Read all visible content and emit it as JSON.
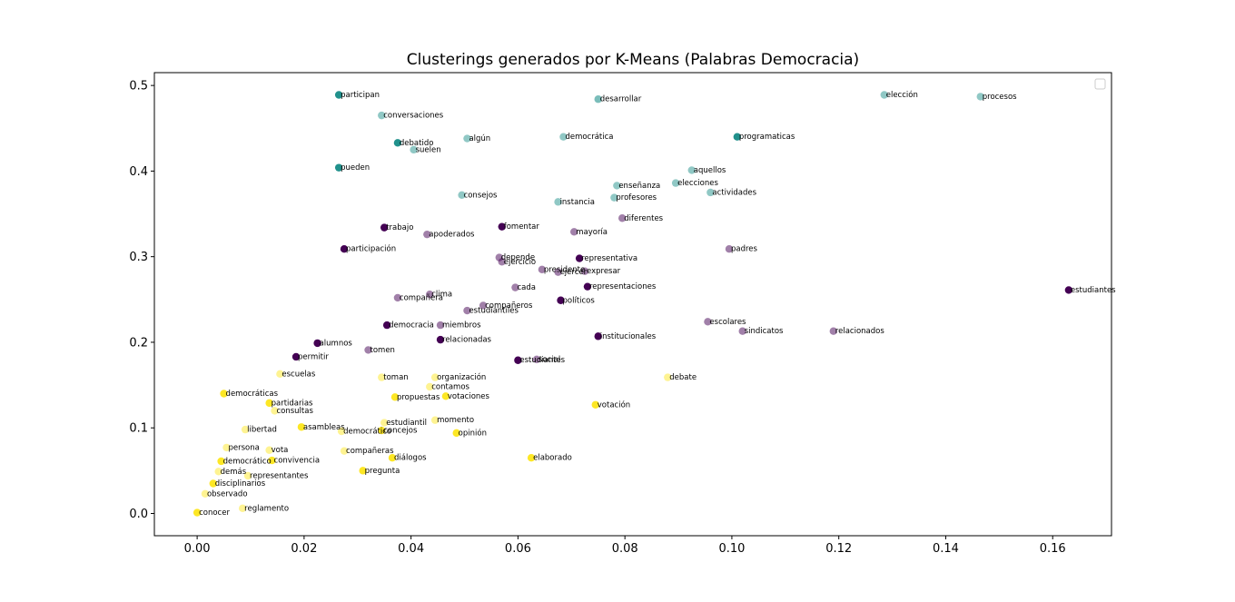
{
  "chart_data": {
    "type": "scatter",
    "title": "Clusterings generados por K-Means (Palabras Democracia)",
    "xlabel": "",
    "ylabel": "",
    "xlim": [
      -0.008,
      0.171
    ],
    "ylim": [
      -0.026,
      0.515
    ],
    "xticks": [
      0.0,
      0.02,
      0.04,
      0.06,
      0.08,
      0.1,
      0.12,
      0.14,
      0.16
    ],
    "xtick_labels": [
      "0.00",
      "0.02",
      "0.04",
      "0.06",
      "0.08",
      "0.10",
      "0.12",
      "0.14",
      "0.16"
    ],
    "yticks": [
      0.0,
      0.1,
      0.2,
      0.3,
      0.4,
      0.5
    ],
    "ytick_labels": [
      "0.0",
      "0.1",
      "0.2",
      "0.3",
      "0.4",
      "0.5"
    ],
    "grid": false,
    "legend": "top-right (empty)",
    "colors": {
      "teal": "#21918c",
      "purple": "#440154",
      "yellow": "#fde725"
    },
    "series": [
      {
        "color": "teal",
        "points": [
          {
            "x": 0.0265,
            "y": 0.489,
            "label": "participan",
            "alpha": 1.0
          },
          {
            "x": 0.075,
            "y": 0.484,
            "label": "desarrollar",
            "alpha": 0.6
          },
          {
            "x": 0.1285,
            "y": 0.489,
            "label": "elección",
            "alpha": 0.5
          },
          {
            "x": 0.1465,
            "y": 0.487,
            "label": "procesos",
            "alpha": 0.5
          },
          {
            "x": 0.0345,
            "y": 0.465,
            "label": "conversaciones",
            "alpha": 0.5
          },
          {
            "x": 0.0375,
            "y": 0.433,
            "label": "debatido",
            "alpha": 1.0
          },
          {
            "x": 0.0405,
            "y": 0.425,
            "label": "suelen",
            "alpha": 0.5
          },
          {
            "x": 0.0505,
            "y": 0.438,
            "label": "algún",
            "alpha": 0.5
          },
          {
            "x": 0.0685,
            "y": 0.44,
            "label": "democrática",
            "alpha": 0.5
          },
          {
            "x": 0.101,
            "y": 0.44,
            "label": "programaticas",
            "alpha": 1.0
          },
          {
            "x": 0.0265,
            "y": 0.404,
            "label": "pueden",
            "alpha": 1.0
          },
          {
            "x": 0.0925,
            "y": 0.401,
            "label": "aquellos",
            "alpha": 0.5
          },
          {
            "x": 0.0785,
            "y": 0.383,
            "label": "enseñanza",
            "alpha": 0.5
          },
          {
            "x": 0.0895,
            "y": 0.386,
            "label": "elecciones",
            "alpha": 0.5
          },
          {
            "x": 0.0495,
            "y": 0.372,
            "label": "consejos",
            "alpha": 0.5
          },
          {
            "x": 0.0675,
            "y": 0.364,
            "label": "instancia",
            "alpha": 0.5
          },
          {
            "x": 0.078,
            "y": 0.369,
            "label": "profesores",
            "alpha": 0.5
          },
          {
            "x": 0.096,
            "y": 0.375,
            "label": "actividades",
            "alpha": 0.5
          }
        ]
      },
      {
        "color": "purple",
        "points": [
          {
            "x": 0.035,
            "y": 0.334,
            "label": "trabajo",
            "alpha": 1.0
          },
          {
            "x": 0.057,
            "y": 0.335,
            "label": "fomentar",
            "alpha": 1.0
          },
          {
            "x": 0.0795,
            "y": 0.345,
            "label": "diferentes",
            "alpha": 0.5
          },
          {
            "x": 0.043,
            "y": 0.326,
            "label": "apoderados",
            "alpha": 0.5
          },
          {
            "x": 0.0705,
            "y": 0.329,
            "label": "mayoría",
            "alpha": 0.5
          },
          {
            "x": 0.0275,
            "y": 0.309,
            "label": "participación",
            "alpha": 1.0
          },
          {
            "x": 0.0995,
            "y": 0.309,
            "label": "padres",
            "alpha": 0.5
          },
          {
            "x": 0.0565,
            "y": 0.299,
            "label": "depende",
            "alpha": 0.5
          },
          {
            "x": 0.057,
            "y": 0.294,
            "label": "ejercicio",
            "alpha": 0.5
          },
          {
            "x": 0.0715,
            "y": 0.298,
            "label": "representativa",
            "alpha": 1.0
          },
          {
            "x": 0.0645,
            "y": 0.285,
            "label": "presidente",
            "alpha": 0.5
          },
          {
            "x": 0.0675,
            "y": 0.282,
            "label": "ejercer",
            "alpha": 0.5
          },
          {
            "x": 0.0725,
            "y": 0.283,
            "label": "expresar",
            "alpha": 0.5
          },
          {
            "x": 0.0595,
            "y": 0.264,
            "label": "cada",
            "alpha": 0.5
          },
          {
            "x": 0.073,
            "y": 0.265,
            "label": "representaciones",
            "alpha": 1.0
          },
          {
            "x": 0.163,
            "y": 0.261,
            "label": "estudiantes",
            "alpha": 1.0
          },
          {
            "x": 0.0375,
            "y": 0.252,
            "label": "compañera",
            "alpha": 0.5
          },
          {
            "x": 0.0435,
            "y": 0.256,
            "label": "clima",
            "alpha": 0.5
          },
          {
            "x": 0.068,
            "y": 0.249,
            "label": "políticos",
            "alpha": 1.0
          },
          {
            "x": 0.0535,
            "y": 0.243,
            "label": "compañeros",
            "alpha": 0.5
          },
          {
            "x": 0.0505,
            "y": 0.237,
            "label": "estudiantiles",
            "alpha": 0.5
          },
          {
            "x": 0.0355,
            "y": 0.22,
            "label": "democracia",
            "alpha": 1.0
          },
          {
            "x": 0.0455,
            "y": 0.22,
            "label": "miembros",
            "alpha": 0.5
          },
          {
            "x": 0.0955,
            "y": 0.224,
            "label": "escolares",
            "alpha": 0.5
          },
          {
            "x": 0.102,
            "y": 0.213,
            "label": "sindicatos",
            "alpha": 0.5
          },
          {
            "x": 0.119,
            "y": 0.213,
            "label": "relacionados",
            "alpha": 0.5
          },
          {
            "x": 0.0455,
            "y": 0.203,
            "label": "relacionadas",
            "alpha": 1.0
          },
          {
            "x": 0.075,
            "y": 0.207,
            "label": "institucionales",
            "alpha": 1.0
          },
          {
            "x": 0.0225,
            "y": 0.199,
            "label": "alumnos",
            "alpha": 1.0
          },
          {
            "x": 0.032,
            "y": 0.191,
            "label": "tomen",
            "alpha": 0.5
          },
          {
            "x": 0.0185,
            "y": 0.183,
            "label": "permitir",
            "alpha": 1.0
          },
          {
            "x": 0.06,
            "y": 0.179,
            "label": "estudiantes",
            "alpha": 1.0
          },
          {
            "x": 0.0635,
            "y": 0.18,
            "label": "social",
            "alpha": 0.5
          }
        ]
      },
      {
        "color": "yellow",
        "points": [
          {
            "x": 0.0155,
            "y": 0.163,
            "label": "escuelas",
            "alpha": 0.5
          },
          {
            "x": 0.0345,
            "y": 0.159,
            "label": "toman",
            "alpha": 0.5
          },
          {
            "x": 0.0445,
            "y": 0.159,
            "label": "organización",
            "alpha": 0.5
          },
          {
            "x": 0.088,
            "y": 0.159,
            "label": "debate",
            "alpha": 0.5
          },
          {
            "x": 0.0435,
            "y": 0.148,
            "label": "contamos",
            "alpha": 0.5
          },
          {
            "x": 0.005,
            "y": 0.14,
            "label": "democráticas",
            "alpha": 1.0
          },
          {
            "x": 0.037,
            "y": 0.136,
            "label": "propuestas",
            "alpha": 1.0
          },
          {
            "x": 0.0465,
            "y": 0.137,
            "label": "votaciones",
            "alpha": 1.0
          },
          {
            "x": 0.0135,
            "y": 0.129,
            "label": "partidarias",
            "alpha": 1.0
          },
          {
            "x": 0.0745,
            "y": 0.127,
            "label": "votación",
            "alpha": 1.0
          },
          {
            "x": 0.0145,
            "y": 0.12,
            "label": "consultas",
            "alpha": 0.5
          },
          {
            "x": 0.0445,
            "y": 0.109,
            "label": "momento",
            "alpha": 0.5
          },
          {
            "x": 0.035,
            "y": 0.106,
            "label": "estudiantil",
            "alpha": 0.5
          },
          {
            "x": 0.0195,
            "y": 0.101,
            "label": "asambleas",
            "alpha": 1.0
          },
          {
            "x": 0.009,
            "y": 0.098,
            "label": "libertad",
            "alpha": 0.5
          },
          {
            "x": 0.027,
            "y": 0.096,
            "label": "democrático",
            "alpha": 0.5
          },
          {
            "x": 0.0345,
            "y": 0.097,
            "label": "concejos",
            "alpha": 1.0
          },
          {
            "x": 0.0485,
            "y": 0.094,
            "label": "opinión",
            "alpha": 1.0
          },
          {
            "x": 0.0055,
            "y": 0.077,
            "label": "persona",
            "alpha": 0.5
          },
          {
            "x": 0.0135,
            "y": 0.074,
            "label": "vota",
            "alpha": 0.5
          },
          {
            "x": 0.0275,
            "y": 0.073,
            "label": "compañeras",
            "alpha": 0.5
          },
          {
            "x": 0.0365,
            "y": 0.065,
            "label": "diálogos",
            "alpha": 1.0
          },
          {
            "x": 0.0045,
            "y": 0.061,
            "label": "democrático",
            "alpha": 1.0
          },
          {
            "x": 0.014,
            "y": 0.062,
            "label": "convivencia",
            "alpha": 1.0
          },
          {
            "x": 0.0625,
            "y": 0.065,
            "label": "elaborado",
            "alpha": 1.0
          },
          {
            "x": 0.031,
            "y": 0.05,
            "label": "pregunta",
            "alpha": 1.0
          },
          {
            "x": 0.004,
            "y": 0.049,
            "label": "demás",
            "alpha": 0.5
          },
          {
            "x": 0.0095,
            "y": 0.044,
            "label": "representantes",
            "alpha": 0.5
          },
          {
            "x": 0.003,
            "y": 0.035,
            "label": "disciplinarios",
            "alpha": 1.0
          },
          {
            "x": 0.0015,
            "y": 0.023,
            "label": "observado",
            "alpha": 0.5
          },
          {
            "x": 0.0085,
            "y": 0.006,
            "label": "reglamento",
            "alpha": 0.5
          },
          {
            "x": 0.0,
            "y": 0.001,
            "label": "conocer",
            "alpha": 1.0
          }
        ]
      }
    ]
  }
}
